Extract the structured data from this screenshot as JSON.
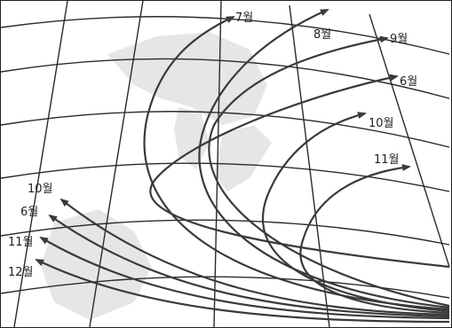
{
  "map": {
    "legend": null,
    "track_labels": [
      "7월",
      "8월",
      "9월",
      "6월",
      "10월",
      "11월",
      "10월",
      "6월",
      "11월",
      "12월"
    ],
    "colors": {
      "ink": "#3a3a3a",
      "land": "#e6e6e6",
      "grid": "#2a2a2a",
      "background": "#ffffff"
    }
  }
}
